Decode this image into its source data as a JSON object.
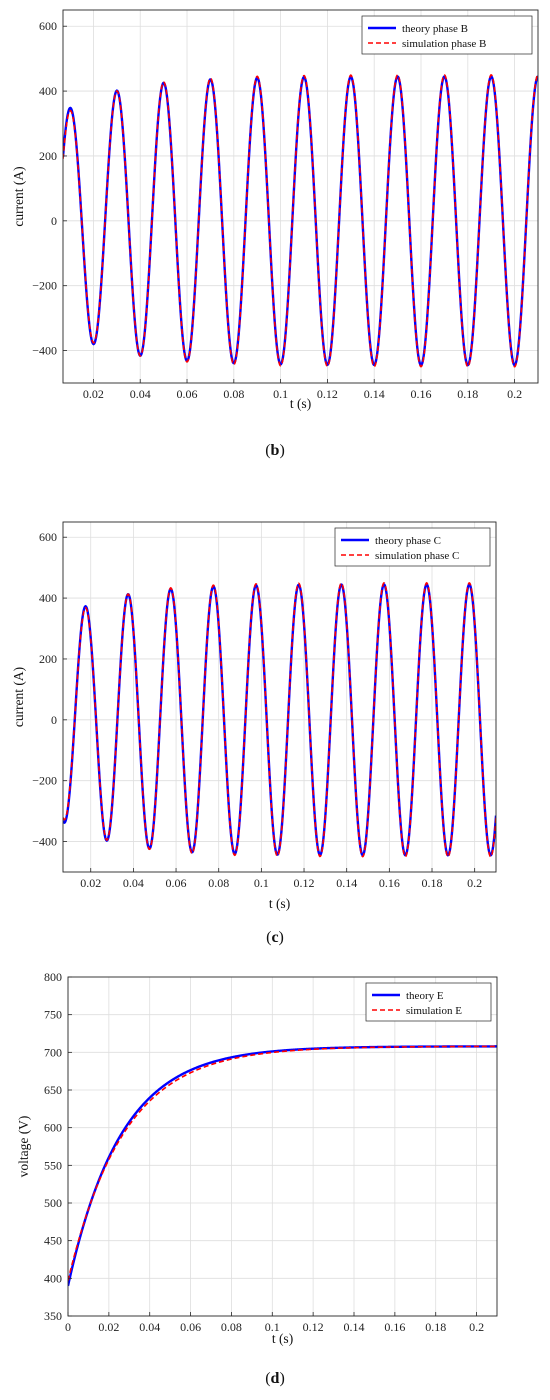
{
  "chart_data": [
    {
      "type": "line",
      "panel_label": "b",
      "xlabel": "t (s)",
      "ylabel": "current (A)",
      "xlim": [
        0.007,
        0.21
      ],
      "ylim": [
        -500,
        650
      ],
      "xticks": [
        0.02,
        0.04,
        0.06,
        0.08,
        0.1,
        0.12,
        0.14,
        0.16,
        0.18,
        0.2
      ],
      "xtick_labels": [
        "0.02",
        "0.04",
        "0.06",
        "0.08",
        "0.1",
        "0.12",
        "0.14",
        "0.16",
        "0.18",
        "0.2"
      ],
      "yticks": [
        -400,
        -200,
        0,
        200,
        400,
        600
      ],
      "ytick_labels": [
        "−400",
        "−200",
        "0",
        "200",
        "400",
        "600"
      ],
      "grid": true,
      "legend_position": "top-right",
      "series": [
        {
          "name": "theory phase B",
          "color": "#0000ff",
          "style": "solid",
          "model": {
            "kind": "sine",
            "period": 0.02,
            "peak_time": 0.01,
            "steady_amplitude": 445,
            "amplitude_initial": 300,
            "time_constant": 0.025
          }
        },
        {
          "name": "simulation phase B",
          "color": "#ff0000",
          "style": "dashed",
          "model": {
            "kind": "sine",
            "period": 0.02,
            "peak_time": 0.01,
            "steady_amplitude": 450,
            "amplitude_initial": 285,
            "time_constant": 0.025
          }
        }
      ]
    },
    {
      "type": "line",
      "panel_label": "c",
      "xlabel": "t (s)",
      "ylabel": "current (A)",
      "xlim": [
        0.007,
        0.21
      ],
      "ylim": [
        -500,
        650
      ],
      "xticks": [
        0.02,
        0.04,
        0.06,
        0.08,
        0.1,
        0.12,
        0.14,
        0.16,
        0.18,
        0.2
      ],
      "xtick_labels": [
        "0.02",
        "0.04",
        "0.06",
        "0.08",
        "0.1",
        "0.12",
        "0.14",
        "0.16",
        "0.18",
        "0.2"
      ],
      "yticks": [
        -400,
        -200,
        0,
        200,
        400,
        600
      ],
      "ytick_labels": [
        "−400",
        "−200",
        "0",
        "200",
        "400",
        "600"
      ],
      "grid": true,
      "legend_position": "top-right",
      "series": [
        {
          "name": "theory phase C",
          "color": "#0000ff",
          "style": "solid",
          "model": {
            "kind": "sine",
            "period": 0.02,
            "peak_time": 0.0175,
            "steady_amplitude": 445,
            "amplitude_initial": 300,
            "time_constant": 0.025
          }
        },
        {
          "name": "simulation phase C",
          "color": "#ff0000",
          "style": "dashed",
          "model": {
            "kind": "sine",
            "period": 0.02,
            "peak_time": 0.0175,
            "steady_amplitude": 450,
            "amplitude_initial": 285,
            "time_constant": 0.025
          }
        }
      ]
    },
    {
      "type": "line",
      "panel_label": "d",
      "xlabel": "t (s)",
      "ylabel": "voltage (V)",
      "xlim": [
        0,
        0.21
      ],
      "ylim": [
        350,
        800
      ],
      "xticks": [
        0,
        0.02,
        0.04,
        0.06,
        0.08,
        0.1,
        0.12,
        0.14,
        0.16,
        0.18,
        0.2
      ],
      "xtick_labels": [
        "0",
        "0.02",
        "0.04",
        "0.06",
        "0.08",
        "0.1",
        "0.12",
        "0.14",
        "0.16",
        "0.18",
        "0.2"
      ],
      "yticks": [
        350,
        400,
        450,
        500,
        550,
        600,
        650,
        700,
        750,
        800
      ],
      "ytick_labels": [
        "350",
        "400",
        "450",
        "500",
        "550",
        "600",
        "650",
        "700",
        "750",
        "800"
      ],
      "grid": true,
      "legend_position": "top-right",
      "series": [
        {
          "name": "theory E",
          "color": "#0000ff",
          "style": "solid",
          "model": {
            "kind": "exp_rise",
            "start": 390,
            "final": 708,
            "time_constant": 0.026
          }
        },
        {
          "name": "simulation E",
          "color": "#ff0000",
          "style": "dashed",
          "model": {
            "kind": "exp_rise",
            "start": 397,
            "final": 708,
            "time_constant": 0.0275
          }
        }
      ]
    }
  ]
}
